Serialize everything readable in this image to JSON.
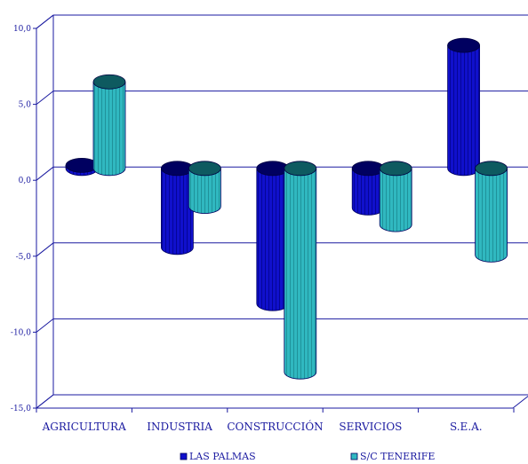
{
  "chart_data": {
    "type": "bar",
    "style": "3d-cylinder",
    "categories": [
      "AGRICULTURA",
      "INDUSTRIA",
      "CONSTRUCCIÓN",
      "SERVICIOS",
      "S.E.A."
    ],
    "series": [
      {
        "name": "LAS PALMAS",
        "values": [
          0.2,
          -5.2,
          -8.9,
          -2.6,
          8.1
        ],
        "color": "#1010cc"
      },
      {
        "name": "S/C TENERIFE",
        "values": [
          5.7,
          -2.5,
          -13.4,
          -3.7,
          -5.7
        ],
        "color": "#30b8c0"
      }
    ],
    "y_ticks": [
      "10,0",
      "5,0",
      "0,0",
      "-5,0",
      "-10,0",
      "-15,0"
    ],
    "ylim": [
      -15,
      10
    ],
    "grid": true,
    "legend_position": "bottom",
    "axis_color": "#1a1aa0"
  }
}
